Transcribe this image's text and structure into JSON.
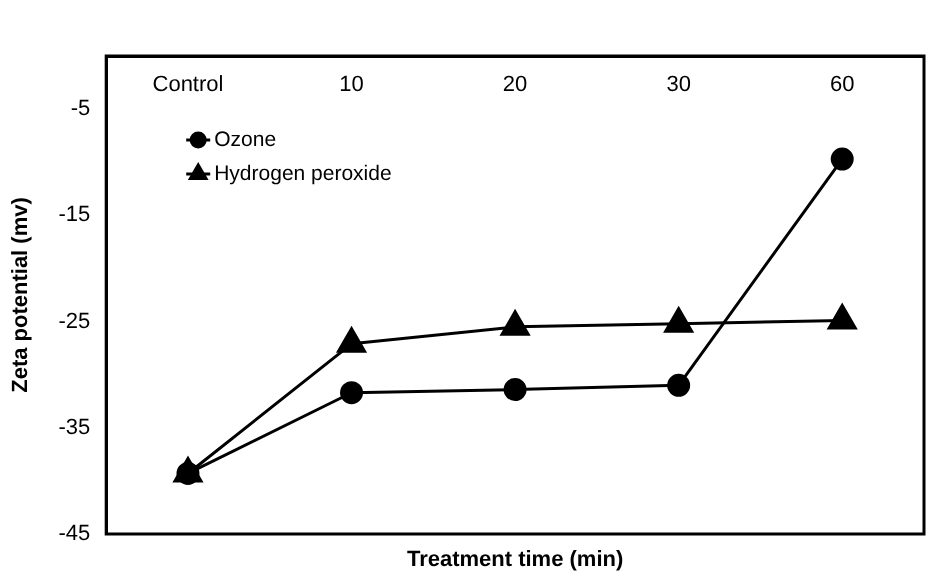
{
  "chart_data": {
    "type": "line",
    "xlabel": "Treatment time (min)",
    "ylabel": "Zeta potential (mv)",
    "categories": [
      "Control",
      "10",
      "20",
      "30",
      "60"
    ],
    "series": [
      {
        "name": "Ozone",
        "color": "#000000",
        "marker": "circle",
        "values": [
          -39.3,
          -31.7,
          -31.4,
          -31.0,
          -9.7
        ]
      },
      {
        "name": "Hydrogen peroxide",
        "color": "#000000",
        "marker": "triangle",
        "values": [
          -39.3,
          -27.1,
          -25.5,
          -25.2,
          -24.9
        ]
      }
    ],
    "ylim": [
      -45,
      0
    ],
    "yticks": [
      -45,
      -35,
      -25,
      -15,
      -5
    ],
    "grid": false,
    "legend": "top left",
    "line_style": "solid"
  }
}
